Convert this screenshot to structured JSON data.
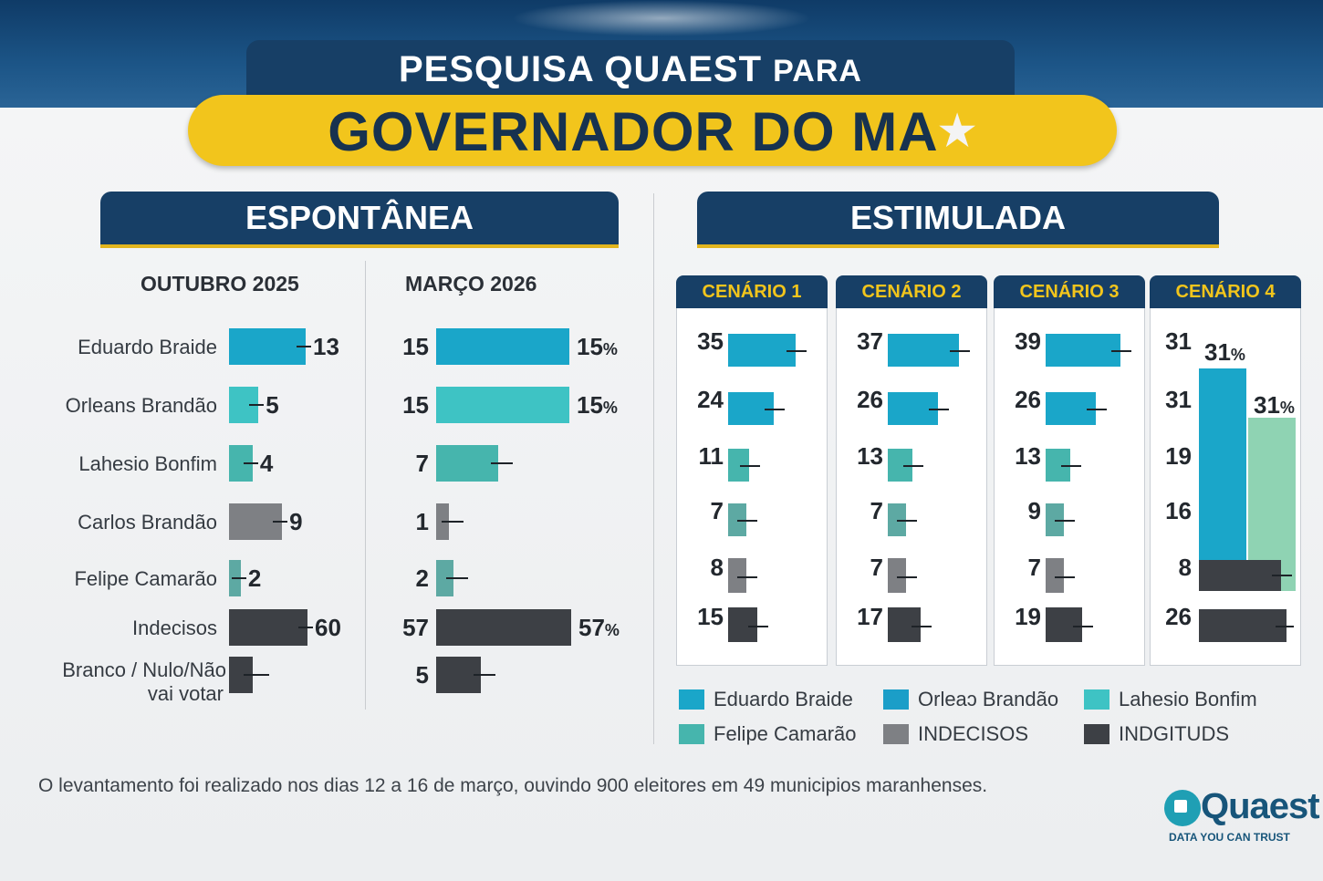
{
  "header": {
    "line1_main": "PESQUISA QUAEST",
    "line1_small": "PARA",
    "line2": "GOVERNADOR DO MA",
    "star_icon": "star-icon"
  },
  "colors": {
    "eduardo": "#1aa6c9",
    "orleans": "#3ec3c4",
    "lahesio": "#46b5ad",
    "felipe": "#5da9a3",
    "carlos": "#7e8084",
    "indecisos": "#3d4045",
    "branco": "#3d4045",
    "navy": "#173f66",
    "gold": "#f2c51c"
  },
  "sections": {
    "espontanea": "ESPONTÂNEA",
    "estimulada": "ESTIMULADA"
  },
  "chart_data": [
    {
      "type": "bar",
      "title": "ESPONTÂNEA",
      "categories": [
        "Eduardo Braide",
        "Orleans Brandão",
        "Lahesio Bonfim",
        "Carlos Brandão",
        "Felipe Camarão",
        "Indecisos",
        "Branco / Nulo/Não vai votar"
      ],
      "series": [
        {
          "name": "OUTUBRO 2025",
          "values": [
            13,
            5,
            4,
            9,
            2,
            60,
            4
          ],
          "labels": [
            "13",
            "5",
            "4",
            "9",
            "2",
            "60",
            ""
          ]
        },
        {
          "name": "MARÇO 2026",
          "values": [
            15,
            15,
            7,
            1,
            2,
            57,
            5
          ],
          "labels": [
            "15",
            "15",
            "7",
            "1",
            "2",
            "57",
            "5"
          ],
          "right_labels": [
            "15",
            "15",
            "",
            "",
            "",
            "57",
            ""
          ]
        }
      ],
      "orientation": "horizontal"
    },
    {
      "type": "bar",
      "title": "ESTIMULADA",
      "scenarios": [
        {
          "name": "CENÁRIO 1",
          "values": [
            35,
            24,
            11,
            7,
            8,
            15
          ]
        },
        {
          "name": "CENÁRIO 2",
          "values": [
            37,
            26,
            13,
            7,
            7,
            17
          ]
        },
        {
          "name": "CENÁRIO 3",
          "values": [
            39,
            26,
            13,
            9,
            7,
            19
          ]
        },
        {
          "name": "CENÁRIO 4",
          "values": [
            31,
            31,
            19,
            16,
            8,
            26
          ],
          "annotations": [
            "31",
            "31"
          ]
        }
      ],
      "legend": [
        "Eduardo Braide",
        "Orleans Brandão",
        "Lahesio Bonfim",
        "Felipe Camarão",
        "INDECISOS",
        "INDECISOS"
      ],
      "legend_visible": [
        "Eduardo Braide",
        "Orleaɔ Brandão",
        "Lahesio Bonfim",
        "Felipe Camarão",
        "INDECISOS",
        "INDGITUDS"
      ]
    }
  ],
  "labels": {
    "oct": "OUTUBRO 2025",
    "mar": "MARÇO 2026",
    "percent": "%",
    "names": [
      "Eduardo Braide",
      "Orleans Brandão",
      "Lahesio Bonfim",
      "Carlos Brandão",
      "Felipe Camarão",
      "Indecisos"
    ],
    "branco_1": "Branco / Nulo/Não",
    "branco_2": "vai votar",
    "scenarios": [
      "CENÁRIO 1",
      "CENÁRIO 2",
      "CENÁRIO 3",
      "CENÁRIO 4"
    ],
    "legend": [
      "Eduardo Braide",
      "Orleaɔ Brandão",
      "Lahesio Bonfim",
      "Felipe Camarão",
      "INDECISOS",
      "INDGITUDS"
    ]
  },
  "footnote": "O levantamento foi realizado nos dias 12 a 16 de março, ouvindo 900 eleitores em 49 municipios maranhenses.",
  "logo": {
    "name": "Quaest",
    "tagline": "DATA YOU CAN TRUST"
  }
}
